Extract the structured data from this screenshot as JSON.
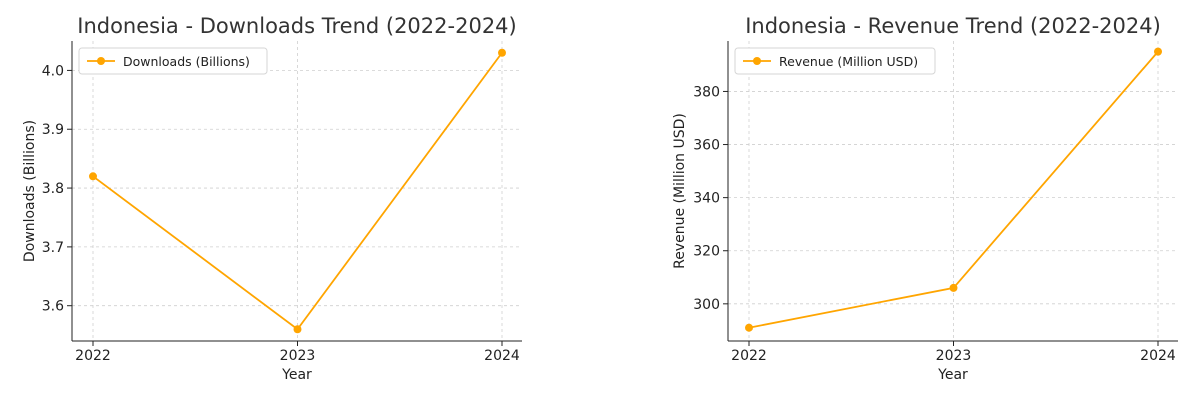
{
  "chart_data": [
    {
      "type": "line",
      "title": "Indonesia - Downloads Trend (2022-2024)",
      "xlabel": "Year",
      "ylabel": "Downloads (Billions)",
      "x": [
        "2022",
        "2023",
        "2024"
      ],
      "ylim": [
        3.54,
        4.05
      ],
      "yticks": [
        "3.6",
        "3.7",
        "3.8",
        "3.9",
        "4.0"
      ],
      "grid": true,
      "legend_position": "upper-left",
      "series": [
        {
          "name": "Downloads (Billions)",
          "values": [
            3.82,
            3.56,
            4.03
          ],
          "color": "#FFA500"
        }
      ]
    },
    {
      "type": "line",
      "title": "Indonesia - Revenue Trend (2022-2024)",
      "xlabel": "Year",
      "ylabel": "Revenue (Million USD)",
      "x": [
        "2022",
        "2023",
        "2024"
      ],
      "ylim": [
        286,
        399
      ],
      "yticks": [
        "300",
        "320",
        "340",
        "360",
        "380"
      ],
      "grid": true,
      "legend_position": "upper-left",
      "series": [
        {
          "name": "Revenue (Million USD)",
          "values": [
            291,
            306,
            395
          ],
          "color": "#FFA500"
        }
      ]
    }
  ]
}
